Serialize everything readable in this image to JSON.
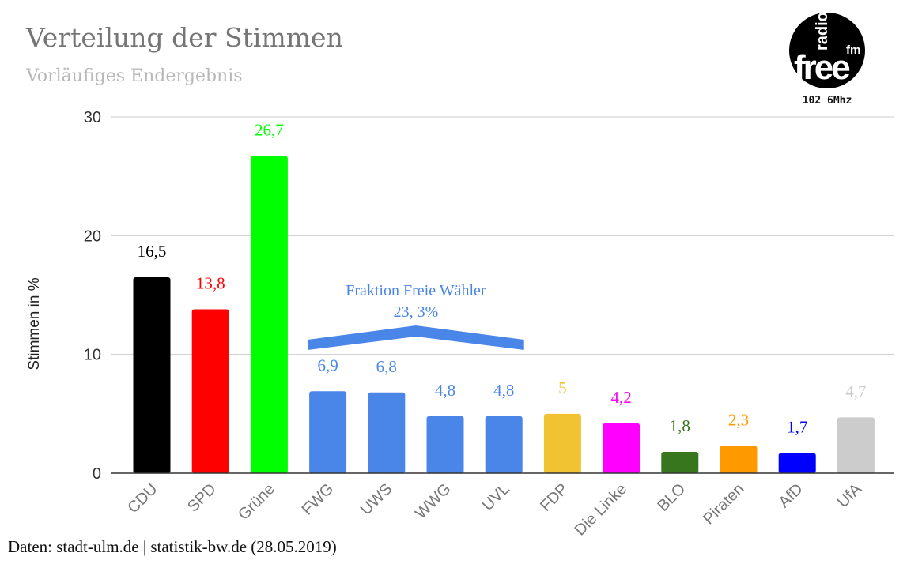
{
  "title": "Verteilung der Stimmen",
  "subtitle": "Vorläufiges Endergebnis",
  "source": "Daten: stadt-ulm.de | statistik-bw.de (28.05.2019)",
  "logo": {
    "radio": "radio",
    "free": "free",
    "fm": "fm",
    "frequency": "102 6Mhz"
  },
  "chart_data": {
    "type": "bar",
    "title": "Verteilung der Stimmen",
    "subtitle": "Vorläufiges Endergebnis",
    "xlabel": "",
    "ylabel": "Stimmen in %",
    "ylim": [
      0,
      30
    ],
    "yticks": [
      0,
      10,
      20,
      30
    ],
    "grid": true,
    "categories": [
      "CDU",
      "SPD",
      "Grüne",
      "FWG",
      "UWS",
      "WWG",
      "UVL",
      "FDP",
      "Die Linke",
      "BLO",
      "Piraten",
      "AfD",
      "UfA"
    ],
    "values": [
      16.5,
      13.8,
      26.7,
      6.9,
      6.8,
      4.8,
      4.8,
      5,
      4.2,
      1.8,
      2.3,
      1.7,
      4.7
    ],
    "data_labels": [
      "16,5",
      "13,8",
      "26,7",
      "6,9",
      "6,8",
      "4,8",
      "4,8",
      "5",
      "4,2",
      "1,8",
      "2,3",
      "1,7",
      "4,7"
    ],
    "colors": [
      "#000000",
      "#ff0000",
      "#00ff00",
      "#4a86e8",
      "#4a86e8",
      "#4a86e8",
      "#4a86e8",
      "#f1c232",
      "#ff00ff",
      "#38761d",
      "#ff9900",
      "#0000ff",
      "#cccccc"
    ],
    "label_colors": [
      "#000000",
      "#ff0000",
      "#00ff00",
      "#4a86e8",
      "#4a86e8",
      "#4a86e8",
      "#4a86e8",
      "#f1c232",
      "#ff00ff",
      "#38761d",
      "#ff9900",
      "#0000ff",
      "#cccccc"
    ],
    "annotation": {
      "line1": "Fraktion Freie Wähler",
      "line2": "23, 3%",
      "color": "#4a86e8",
      "spans": [
        "FWG",
        "UVL"
      ]
    }
  }
}
